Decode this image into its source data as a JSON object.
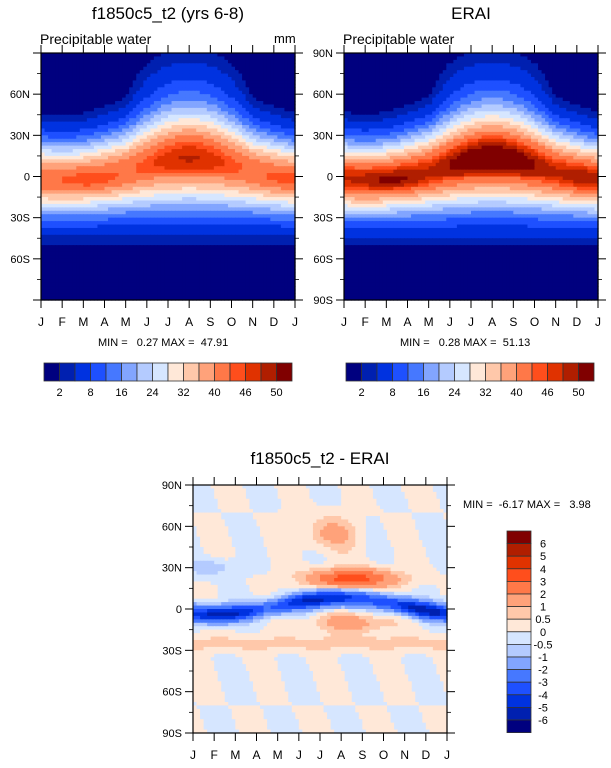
{
  "chart_data": [
    {
      "type": "heatmap",
      "id": "model",
      "title": "f1850c5_t2 (yrs 6-8)",
      "left_subtitle": "Precipitable water",
      "right_subtitle": "mm",
      "x_tick_labels": [
        "J",
        "F",
        "M",
        "A",
        "M",
        "J",
        "J",
        "A",
        "S",
        "O",
        "N",
        "D",
        "J"
      ],
      "y_tick_labels": [
        "60N",
        "30N",
        "0",
        "30S",
        "60S"
      ],
      "xlabel": "",
      "ylabel": "",
      "stats_text": "MIN =   0.27 MAX =  47.91",
      "min": 0.27,
      "max": 47.91,
      "ylim": [
        -90,
        90
      ],
      "colorbar": {
        "orientation": "horizontal",
        "tick_labels": [
          "2",
          "8",
          "16",
          "24",
          "32",
          "40",
          "46",
          "50"
        ],
        "levels": [
          2,
          4,
          8,
          12,
          16,
          20,
          24,
          28,
          32,
          36,
          40,
          44,
          46,
          48,
          50
        ],
        "colors": [
          "#00007f",
          "#0020b0",
          "#0032e0",
          "#1e50ff",
          "#4678ff",
          "#82a5ff",
          "#b4cbff",
          "#d6e6ff",
          "#ffe8d8",
          "#ffc8aa",
          "#ffa27a",
          "#ff7848",
          "#ff4e1c",
          "#e03200",
          "#b01e00",
          "#800000"
        ]
      },
      "peak_value_approx": 44
    },
    {
      "type": "heatmap",
      "id": "obs",
      "title": "ERAI",
      "left_subtitle": "Precipitable water",
      "x_tick_labels": [
        "J",
        "F",
        "M",
        "A",
        "M",
        "J",
        "J",
        "A",
        "S",
        "O",
        "N",
        "D",
        "J"
      ],
      "y_tick_labels": [
        "90N",
        "60N",
        "30N",
        "0",
        "30S",
        "60S",
        "90S"
      ],
      "stats_text": "MIN =   0.28 MAX =  51.13",
      "min": 0.28,
      "max": 51.13,
      "ylim": [
        -90,
        90
      ],
      "colorbar": {
        "orientation": "horizontal",
        "tick_labels": [
          "2",
          "8",
          "16",
          "24",
          "32",
          "40",
          "46",
          "50"
        ],
        "levels": [
          2,
          4,
          8,
          12,
          16,
          20,
          24,
          28,
          32,
          36,
          40,
          44,
          46,
          48,
          50
        ],
        "colors": [
          "#00007f",
          "#0020b0",
          "#0032e0",
          "#1e50ff",
          "#4678ff",
          "#82a5ff",
          "#b4cbff",
          "#d6e6ff",
          "#ffe8d8",
          "#ffc8aa",
          "#ffa27a",
          "#ff7848",
          "#ff4e1c",
          "#e03200",
          "#b01e00",
          "#800000"
        ]
      },
      "peak_value_approx": 51
    },
    {
      "type": "heatmap",
      "id": "diff",
      "title": "f1850c5_t2 - ERAI",
      "x_tick_labels": [
        "J",
        "F",
        "M",
        "A",
        "M",
        "J",
        "J",
        "A",
        "S",
        "O",
        "N",
        "D",
        "J"
      ],
      "y_tick_labels": [
        "90N",
        "60N",
        "30N",
        "0",
        "30S",
        "60S",
        "90S"
      ],
      "stats_text": "MIN =  -6.17 MAX =   3.98",
      "min": -6.17,
      "max": 3.98,
      "ylim": [
        -90,
        90
      ],
      "colorbar": {
        "orientation": "vertical",
        "tick_labels": [
          "6",
          "5",
          "4",
          "3",
          "2",
          "1",
          "0.5",
          "0",
          "-0.5",
          "-1",
          "-2",
          "-3",
          "-4",
          "-5",
          "-6"
        ],
        "colors_top_to_bottom": [
          "#800000",
          "#b01e00",
          "#e03200",
          "#ff4e1c",
          "#ff7848",
          "#ffa27a",
          "#ffc8aa",
          "#ffe8d8",
          "#d6e6ff",
          "#b4cbff",
          "#82a5ff",
          "#4678ff",
          "#1e50ff",
          "#0032e0",
          "#0020b0",
          "#00007f"
        ]
      },
      "features": [
        {
          "desc": "positive band north of equator",
          "lat": 20,
          "month_center": 7.5,
          "value": 3.5
        },
        {
          "desc": "negative band along equator",
          "lat": 0,
          "value": -6
        },
        {
          "desc": "positive patch south of equator",
          "lat": -10,
          "month_center": 7.5,
          "value": 2
        }
      ]
    }
  ]
}
